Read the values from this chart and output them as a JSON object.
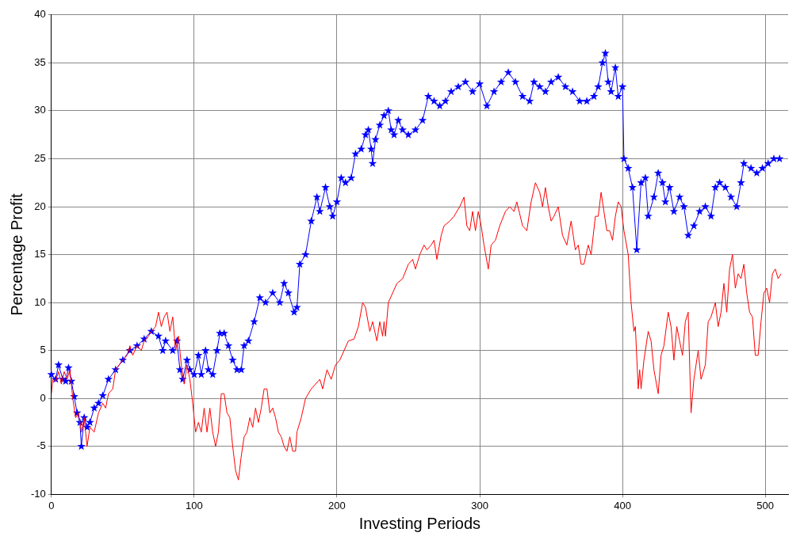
{
  "chart_data": {
    "type": "line",
    "xlabel": "Investing Periods",
    "ylabel": "Percentage Profit",
    "xlim": [
      0,
      516
    ],
    "ylim": [
      -10,
      40
    ],
    "xticks": [
      0,
      100,
      200,
      300,
      400,
      500
    ],
    "yticks": [
      -10,
      -5,
      0,
      5,
      10,
      15,
      20,
      25,
      30,
      35,
      40
    ],
    "grid": true,
    "legend": false,
    "series": [
      {
        "color": "#0000ff",
        "marker": "star",
        "x": [
          0,
          3,
          5,
          8,
          10,
          12,
          14,
          16,
          18,
          20,
          21,
          23,
          25,
          27,
          30,
          33,
          36,
          40,
          45,
          50,
          55,
          60,
          65,
          70,
          75,
          78,
          80,
          85,
          88,
          90,
          92,
          95,
          97,
          100,
          103,
          105,
          108,
          110,
          113,
          116,
          118,
          121,
          124,
          127,
          130,
          133,
          135,
          138,
          142,
          146,
          150,
          155,
          160,
          163,
          166,
          170,
          172,
          174,
          178,
          182,
          186,
          188,
          192,
          195,
          197,
          200,
          203,
          206,
          210,
          213,
          217,
          220,
          222,
          224,
          225,
          227,
          230,
          233,
          236,
          238,
          240,
          243,
          246,
          250,
          255,
          260,
          264,
          268,
          272,
          276,
          280,
          285,
          290,
          295,
          300,
          305,
          310,
          315,
          320,
          325,
          330,
          335,
          338,
          342,
          346,
          350,
          355,
          360,
          365,
          370,
          375,
          380,
          383,
          386,
          388,
          390,
          392,
          395,
          397,
          400,
          401,
          404,
          407,
          410,
          413,
          416,
          418,
          422,
          425,
          428,
          430,
          433,
          436,
          440,
          443,
          446,
          450,
          454,
          458,
          462,
          465,
          468,
          472,
          476,
          480,
          483,
          485,
          490,
          494,
          498,
          502,
          506,
          510
        ],
        "values": [
          2.5,
          2,
          3.5,
          2,
          1.8,
          3.2,
          1.8,
          0.2,
          -1.5,
          -2.5,
          -5,
          -2,
          -3,
          -2.5,
          -1,
          -0.5,
          0.3,
          2,
          3,
          4,
          5,
          5.5,
          6.2,
          7,
          6.5,
          5,
          6,
          5,
          6,
          3,
          2,
          4,
          3,
          2.5,
          4.5,
          2.5,
          5,
          3,
          2.5,
          5,
          6.8,
          6.8,
          5.5,
          4,
          3,
          3,
          5.5,
          6,
          8,
          10.5,
          10,
          11,
          10,
          12,
          11,
          9,
          9.5,
          14,
          15,
          18.5,
          21,
          19.5,
          22,
          20,
          19,
          20.5,
          23,
          22.5,
          23,
          25.5,
          26,
          27.5,
          28,
          26,
          24.5,
          27,
          28.5,
          29.5,
          30,
          28,
          27.5,
          29,
          28,
          27.5,
          28,
          29,
          31.5,
          31,
          30.5,
          31,
          32,
          32.5,
          33,
          32,
          32.8,
          30.5,
          32,
          33,
          34,
          33,
          31.5,
          31,
          33,
          32.5,
          32,
          33,
          33.5,
          32.5,
          32,
          31,
          31,
          31.5,
          32.5,
          35,
          36,
          33,
          32,
          34.5,
          31.5,
          32.5,
          25,
          24,
          22,
          15.5,
          22.5,
          23,
          19,
          21,
          23.5,
          22.5,
          20.5,
          22,
          19.5,
          21,
          20,
          17,
          18,
          19.5,
          20,
          19,
          22,
          22.5,
          22,
          21,
          20,
          22.5,
          24.5,
          24,
          23.5,
          24,
          24.5,
          25,
          25
        ]
      },
      {
        "color": "#ff0000",
        "marker": "none",
        "x": [
          0,
          1,
          3,
          5,
          7,
          9,
          11,
          13,
          15,
          17,
          19,
          21,
          23,
          25,
          27,
          30,
          33,
          36,
          38,
          40,
          43,
          45,
          50,
          53,
          55,
          57,
          60,
          63,
          65,
          68,
          70,
          73,
          75,
          77,
          79,
          81,
          83,
          85,
          87,
          89,
          91,
          93,
          95,
          97,
          99,
          101,
          103,
          105,
          107,
          109,
          111,
          113,
          115,
          117,
          119,
          121,
          123,
          125,
          127,
          129,
          131,
          133,
          135,
          137,
          139,
          141,
          143,
          145,
          147,
          149,
          151,
          153,
          155,
          157,
          159,
          161,
          163,
          165,
          167,
          169,
          171,
          172,
          175,
          178,
          182,
          185,
          188,
          190,
          193,
          196,
          199,
          202,
          205,
          208,
          212,
          215,
          218,
          220,
          223,
          225,
          228,
          230,
          232,
          233,
          234,
          236,
          239,
          242,
          246,
          250,
          253,
          255,
          258,
          261,
          263,
          266,
          268,
          270,
          273,
          275,
          279,
          282,
          286,
          289,
          291,
          293,
          295,
          297,
          299,
          301,
          303,
          306,
          308,
          311,
          314,
          318,
          321,
          324,
          326,
          330,
          333,
          336,
          339,
          342,
          344,
          346,
          348,
          350,
          352,
          355,
          358,
          361,
          364,
          367,
          369,
          371,
          373,
          376,
          378,
          381,
          383,
          385,
          387,
          389,
          391,
          393,
          395,
          397,
          399,
          401,
          404,
          406,
          408,
          409,
          411,
          412,
          413,
          415,
          418,
          420,
          422,
          425,
          427,
          429,
          432,
          434,
          436,
          438,
          440,
          442,
          444,
          446,
          448,
          450,
          453,
          455,
          458,
          460,
          462,
          465,
          467,
          469,
          471,
          473,
          475,
          477,
          479,
          481,
          483,
          485,
          487,
          489,
          491,
          493,
          495,
          497,
          499,
          501,
          503,
          505,
          507,
          509,
          511
        ],
        "values": [
          0.5,
          2,
          1.8,
          2.8,
          1.5,
          2.8,
          2,
          3,
          0,
          -2,
          -1.5,
          -3.5,
          -2,
          -5,
          -3,
          -3.5,
          -1.5,
          -0.5,
          -1,
          0.5,
          1,
          3,
          4,
          4.5,
          5.5,
          4.5,
          5.5,
          5,
          6,
          6.5,
          7,
          7.5,
          9,
          7.5,
          8.5,
          9,
          7,
          8.5,
          5,
          6.5,
          3.5,
          1.5,
          3.5,
          2,
          -0.5,
          -3.5,
          -2.5,
          -3.5,
          -1,
          -3.5,
          -1,
          -3.5,
          -5,
          -3.5,
          0.5,
          0.5,
          -1.5,
          -2,
          -5,
          -7.5,
          -8.5,
          -6,
          -4,
          -3.5,
          -2,
          -3,
          -1,
          -2.5,
          -1,
          1,
          1,
          -1.5,
          -1,
          -2,
          -3.5,
          -4,
          -5,
          -5.5,
          -4,
          -5.5,
          -5.5,
          -3.5,
          -2,
          0,
          1,
          1.5,
          2,
          1,
          3,
          2,
          3.5,
          4,
          5,
          6,
          6.2,
          7.5,
          10,
          9.5,
          7,
          8,
          6,
          8,
          6.5,
          8,
          6.5,
          10,
          11,
          12,
          12.5,
          14,
          14.5,
          13.5,
          15,
          16,
          15.5,
          16,
          16.5,
          14.5,
          17,
          18,
          18.5,
          19,
          20,
          21,
          18,
          17.5,
          19.5,
          17.5,
          19.5,
          18,
          16,
          13.5,
          16,
          16.5,
          18,
          19.5,
          20,
          19.5,
          20.5,
          18,
          17.5,
          20.5,
          22.5,
          21.5,
          20,
          22,
          20,
          18.5,
          19,
          20,
          17,
          16,
          18.5,
          15.5,
          16,
          14,
          14,
          16,
          15,
          19,
          19,
          21.5,
          19.5,
          17.5,
          17.5,
          16.5,
          19,
          20.5,
          20,
          17.5,
          15,
          10,
          7,
          7.5,
          1,
          3,
          1,
          4,
          7,
          6,
          3,
          0.5,
          4.5,
          5.5,
          9,
          7.5,
          4,
          7.5,
          6,
          4.5,
          8,
          9,
          -1.5,
          2,
          5,
          2,
          3.5,
          8,
          8.5,
          10,
          7.5,
          9,
          12,
          9,
          13.5,
          15,
          11.5,
          13,
          12.5,
          14,
          11,
          9,
          8.5,
          4.5,
          4.5,
          8,
          11,
          11.5,
          10,
          13,
          13.5,
          12.5,
          13
        ]
      }
    ]
  }
}
